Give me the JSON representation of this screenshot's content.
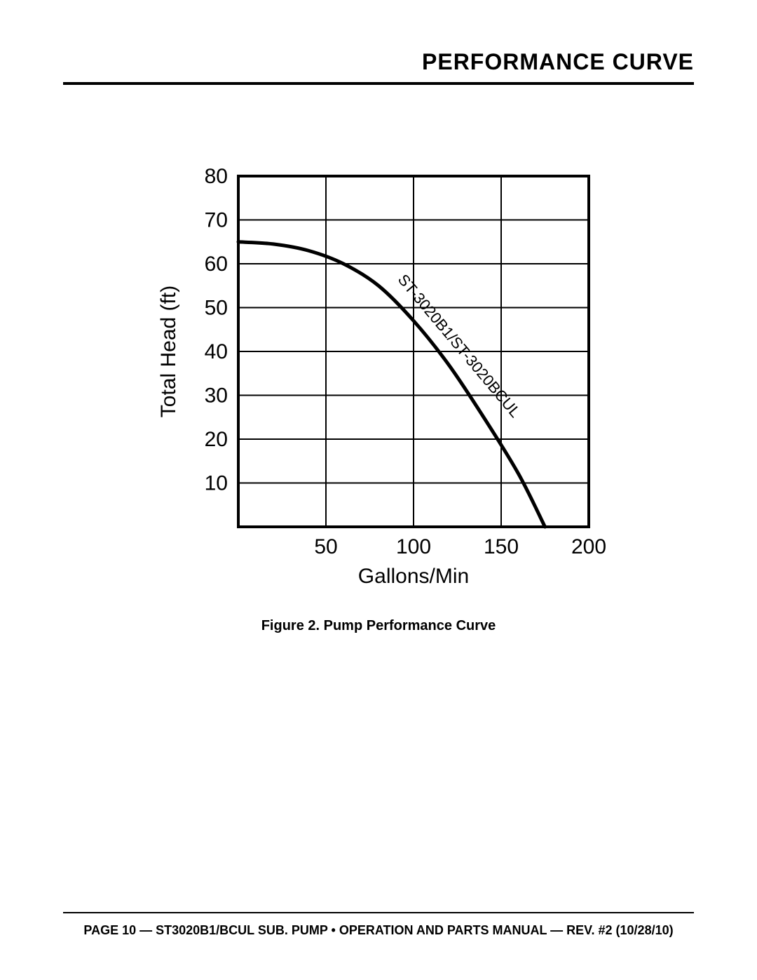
{
  "header": {
    "title": "PERFORMANCE CURVE"
  },
  "chart": {
    "type": "line",
    "y_axis_label": "Total Head (ft)",
    "x_axis_label": "Gallons/Min",
    "curve_label": "ST-3020B1/ST-3020BCUL",
    "x_ticks": [
      50,
      100,
      150,
      200
    ],
    "y_ticks": [
      10,
      20,
      30,
      40,
      50,
      60,
      70,
      80
    ],
    "xlim": [
      0,
      200
    ],
    "ylim": [
      0,
      80
    ],
    "curve_points": [
      {
        "x": 0,
        "y": 65
      },
      {
        "x": 20,
        "y": 64.5
      },
      {
        "x": 40,
        "y": 63
      },
      {
        "x": 60,
        "y": 60
      },
      {
        "x": 80,
        "y": 55
      },
      {
        "x": 100,
        "y": 47
      },
      {
        "x": 120,
        "y": 37
      },
      {
        "x": 140,
        "y": 25
      },
      {
        "x": 160,
        "y": 12
      },
      {
        "x": 175,
        "y": 0
      }
    ],
    "style": {
      "axis_stroke": "#000000",
      "axis_stroke_width": 4,
      "grid_stroke": "#000000",
      "grid_stroke_width": 2,
      "curve_stroke": "#000000",
      "curve_stroke_width": 5,
      "tick_fontsize": 30,
      "axis_label_fontsize": 30,
      "curve_label_fontsize": 22,
      "background_color": "#ffffff"
    }
  },
  "figure_caption": "Figure 2. Pump Performance Curve",
  "footer": "PAGE 10 — ST3020B1/BCUL SUB. PUMP • OPERATION AND PARTS MANUAL — REV. #2 (10/28/10)"
}
